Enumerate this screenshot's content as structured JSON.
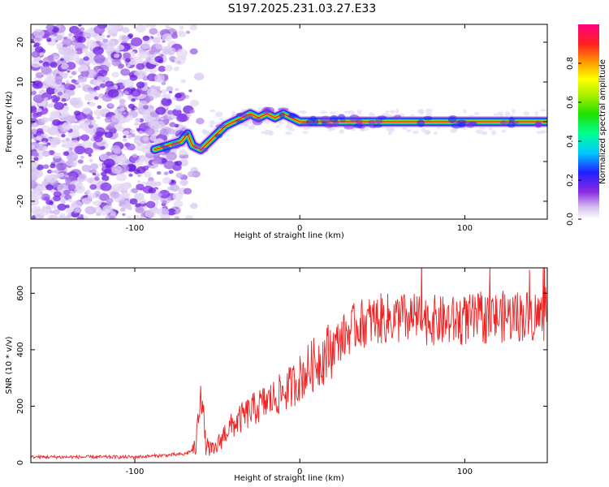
{
  "figure_title": "S197.2025.231.03.27.E33",
  "chart_data": [
    {
      "type": "heatmap",
      "title": "S197.2025.231.03.27.E33",
      "xlabel": "Height of straight line (km)",
      "ylabel": "Frequency (Hz)",
      "xlim": [
        -163,
        150
      ],
      "ylim": [
        -24.5,
        24.5
      ],
      "xticks": [
        -100,
        0,
        100
      ],
      "yticks": [
        -20,
        -10,
        0,
        10,
        20
      ],
      "colorbar": {
        "label": "Normalized spectral amplitude",
        "range": [
          0,
          1
        ],
        "ticks": [
          0.0,
          0.2,
          0.4,
          0.6,
          0.8
        ]
      },
      "ridge": {
        "description_points_km_hz": [
          [
            -88,
            -7
          ],
          [
            -80,
            -6
          ],
          [
            -72,
            -5
          ],
          [
            -68,
            -3
          ],
          [
            -65,
            -6
          ],
          [
            -60,
            -7
          ],
          [
            -55,
            -5
          ],
          [
            -50,
            -3
          ],
          [
            -45,
            -1
          ],
          [
            -40,
            0
          ],
          [
            -35,
            1
          ],
          [
            -30,
            2
          ],
          [
            -25,
            1
          ],
          [
            -20,
            2
          ],
          [
            -15,
            1
          ],
          [
            -10,
            2
          ],
          [
            -5,
            1
          ],
          [
            0,
            0
          ],
          [
            50,
            0
          ],
          [
            100,
            0
          ],
          [
            150,
            0
          ]
        ]
      }
    },
    {
      "type": "line",
      "xlabel": "Height of straight line (km)",
      "ylabel": "SNR (10 * v/v)",
      "xlim": [
        -163,
        150
      ],
      "ylim": [
        0,
        690
      ],
      "xticks": [
        -100,
        0,
        100
      ],
      "yticks": [
        0,
        200,
        400,
        600
      ],
      "series": [
        {
          "name": "SNR",
          "color": "#ee2222",
          "trend_points": [
            [
              -163,
              20
            ],
            [
              -100,
              20
            ],
            [
              -70,
              30
            ],
            [
              -63,
              50
            ],
            [
              -60,
              280
            ],
            [
              -57,
              60
            ],
            [
              -52,
              40
            ],
            [
              -45,
              110
            ],
            [
              -35,
              160
            ],
            [
              -25,
              200
            ],
            [
              -15,
              230
            ],
            [
              -5,
              270
            ],
            [
              5,
              330
            ],
            [
              15,
              380
            ],
            [
              25,
              440
            ],
            [
              35,
              490
            ],
            [
              50,
              510
            ],
            [
              70,
              510
            ],
            [
              90,
              500
            ],
            [
              110,
              510
            ],
            [
              130,
              520
            ],
            [
              150,
              520
            ]
          ]
        }
      ]
    }
  ]
}
